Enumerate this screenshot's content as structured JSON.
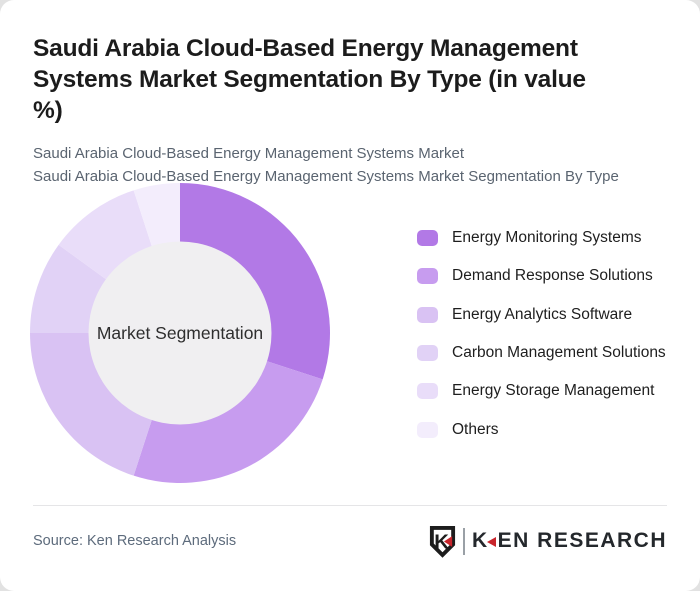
{
  "header": {
    "title": "Saudi Arabia Cloud-Based Energy Management Systems Market Segmentation By Type (in value %)",
    "subtitle_line1": "Saudi Arabia Cloud-Based Energy Management Systems Market",
    "subtitle_line2": "Saudi Arabia Cloud-Based Energy Management Systems Market Segmentation By Type"
  },
  "chart_data": {
    "type": "pie",
    "variant": "donut",
    "title": "Saudi Arabia Cloud-Based Energy Management Systems Market Segmentation By Type (in value %)",
    "center_label": "Market Segmentation",
    "labels": [
      "Energy Monitoring Systems",
      "Demand Response Solutions",
      "Energy Analytics Software",
      "Carbon Management Solutions",
      "Energy Storage Management",
      "Others"
    ],
    "values": [
      30,
      25,
      20,
      10,
      10,
      5
    ],
    "unit": "% of value",
    "colors": [
      "#b279e6",
      "#c79cef",
      "#d9c2f3",
      "#e1d2f6",
      "#e9ddf9",
      "#f3edfc"
    ],
    "center_fill": "#f0eff1",
    "start_angle_deg": 0,
    "direction": "clockwise",
    "legend_position": "right",
    "inner_radius_ratio": 0.61
  },
  "footer": {
    "source": "Source: Ken Research Analysis",
    "logo": {
      "emblem_letter": "K",
      "wordmark_first_letter": "K",
      "wordmark_rest": "EN RESEARCH",
      "accent_color": "#c8252c"
    }
  }
}
